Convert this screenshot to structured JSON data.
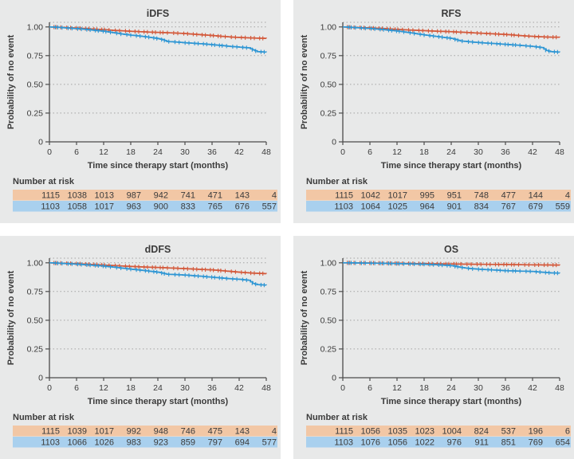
{
  "figure": {
    "layout": "2x2-grid",
    "background": "#ffffff",
    "panel_background": "#e8e9e9"
  },
  "colors": {
    "series_orange": "#d3593b",
    "series_blue": "#2e96d4",
    "risk_row_orange_bg": "#f2c7a5",
    "risk_row_blue_bg": "#a9d0ee",
    "axis": "#4c4c4c",
    "grid": "#a3a3a3",
    "text": "#3b3b3b"
  },
  "chart_data": [
    {
      "type": "line",
      "subtype": "kaplan-meier",
      "title": "iDFS",
      "xlabel": "Time since therapy start (months)",
      "ylabel": "Probability of no event",
      "xlim": [
        0,
        48
      ],
      "ylim": [
        0,
        1.04
      ],
      "grid": "dotted-horizontal",
      "legend_position": "none",
      "x_ticks": [
        0,
        6,
        12,
        18,
        24,
        30,
        36,
        42,
        48
      ],
      "y_ticks": [
        {
          "label": "0",
          "value": 0
        },
        {
          "label": "0.25",
          "value": 0.25
        },
        {
          "label": "0.50",
          "value": 0.5
        },
        {
          "label": "0.75",
          "value": 0.75
        },
        {
          "label": "1.00",
          "value": 1
        }
      ],
      "series": [
        {
          "id": "series-orange",
          "color": "#d3593b",
          "censoring": "dense",
          "points": [
            [
              0,
              1.0
            ],
            [
              2,
              0.997
            ],
            [
              4,
              0.993
            ],
            [
              6,
              0.99
            ],
            [
              8,
              0.985
            ],
            [
              10,
              0.98
            ],
            [
              12,
              0.976
            ],
            [
              14,
              0.97
            ],
            [
              16,
              0.966
            ],
            [
              18,
              0.962
            ],
            [
              20,
              0.958
            ],
            [
              22,
              0.955
            ],
            [
              24,
              0.952
            ],
            [
              26,
              0.949
            ],
            [
              28,
              0.946
            ],
            [
              30,
              0.942
            ],
            [
              32,
              0.936
            ],
            [
              34,
              0.93
            ],
            [
              36,
              0.925
            ],
            [
              38,
              0.918
            ],
            [
              40,
              0.912
            ],
            [
              42,
              0.908
            ],
            [
              44,
              0.905
            ],
            [
              46,
              0.902
            ],
            [
              48,
              0.9
            ]
          ]
        },
        {
          "id": "series-blue",
          "color": "#2e96d4",
          "censoring": "dense",
          "points": [
            [
              0,
              1.0
            ],
            [
              2,
              0.996
            ],
            [
              4,
              0.99
            ],
            [
              6,
              0.985
            ],
            [
              8,
              0.978
            ],
            [
              10,
              0.97
            ],
            [
              12,
              0.962
            ],
            [
              14,
              0.95
            ],
            [
              16,
              0.938
            ],
            [
              18,
              0.928
            ],
            [
              20,
              0.92
            ],
            [
              22,
              0.91
            ],
            [
              24,
              0.898
            ],
            [
              25,
              0.888
            ],
            [
              26,
              0.873
            ],
            [
              28,
              0.868
            ],
            [
              30,
              0.862
            ],
            [
              32,
              0.857
            ],
            [
              34,
              0.852
            ],
            [
              36,
              0.845
            ],
            [
              38,
              0.838
            ],
            [
              40,
              0.83
            ],
            [
              42,
              0.824
            ],
            [
              44,
              0.818
            ],
            [
              45,
              0.8
            ],
            [
              46,
              0.785
            ],
            [
              48,
              0.78
            ]
          ]
        }
      ],
      "risk_table": {
        "label": "Number at risk",
        "rows": [
          {
            "series": "series-orange",
            "bg": "#f2c7a5",
            "values": [
              1115,
              1038,
              1013,
              987,
              942,
              741,
              471,
              143,
              4
            ]
          },
          {
            "series": "series-blue",
            "bg": "#a9d0ee",
            "values": [
              1103,
              1058,
              1017,
              963,
              900,
              833,
              765,
              676,
              557
            ]
          }
        ]
      }
    },
    {
      "type": "line",
      "subtype": "kaplan-meier",
      "title": "RFS",
      "xlabel": "Time since therapy start (months)",
      "ylabel": "Probability of no event",
      "xlim": [
        0,
        48
      ],
      "ylim": [
        0,
        1.04
      ],
      "grid": "dotted-horizontal",
      "legend_position": "none",
      "x_ticks": [
        0,
        6,
        12,
        18,
        24,
        30,
        36,
        42,
        48
      ],
      "y_ticks": [
        {
          "label": "0",
          "value": 0
        },
        {
          "label": "0.25",
          "value": 0.25
        },
        {
          "label": "0.50",
          "value": 0.5
        },
        {
          "label": "0.75",
          "value": 0.75
        },
        {
          "label": "1.00",
          "value": 1
        }
      ],
      "series": [
        {
          "id": "series-orange",
          "color": "#d3593b",
          "censoring": "dense",
          "points": [
            [
              0,
              1.0
            ],
            [
              3,
              0.995
            ],
            [
              6,
              0.991
            ],
            [
              9,
              0.985
            ],
            [
              12,
              0.978
            ],
            [
              15,
              0.972
            ],
            [
              18,
              0.967
            ],
            [
              21,
              0.962
            ],
            [
              24,
              0.958
            ],
            [
              27,
              0.952
            ],
            [
              30,
              0.946
            ],
            [
              33,
              0.94
            ],
            [
              36,
              0.934
            ],
            [
              39,
              0.925
            ],
            [
              42,
              0.917
            ],
            [
              45,
              0.912
            ],
            [
              48,
              0.91
            ]
          ]
        },
        {
          "id": "series-blue",
          "color": "#2e96d4",
          "censoring": "dense",
          "points": [
            [
              0,
              1.0
            ],
            [
              3,
              0.993
            ],
            [
              6,
              0.986
            ],
            [
              9,
              0.976
            ],
            [
              12,
              0.964
            ],
            [
              15,
              0.948
            ],
            [
              18,
              0.93
            ],
            [
              21,
              0.915
            ],
            [
              24,
              0.9
            ],
            [
              26,
              0.878
            ],
            [
              28,
              0.87
            ],
            [
              30,
              0.864
            ],
            [
              33,
              0.856
            ],
            [
              36,
              0.848
            ],
            [
              39,
              0.84
            ],
            [
              42,
              0.83
            ],
            [
              44,
              0.82
            ],
            [
              45,
              0.795
            ],
            [
              46,
              0.785
            ],
            [
              48,
              0.78
            ]
          ]
        }
      ],
      "risk_table": {
        "label": "Number at risk",
        "rows": [
          {
            "series": "series-orange",
            "bg": "#f2c7a5",
            "values": [
              1115,
              1042,
              1017,
              995,
              951,
              748,
              477,
              144,
              4
            ]
          },
          {
            "series": "series-blue",
            "bg": "#a9d0ee",
            "values": [
              1103,
              1064,
              1025,
              964,
              901,
              834,
              767,
              679,
              559
            ]
          }
        ]
      }
    },
    {
      "type": "line",
      "subtype": "kaplan-meier",
      "title": "dDFS",
      "xlabel": "Time since therapy start (months)",
      "ylabel": "Probability of no event",
      "xlim": [
        0,
        48
      ],
      "ylim": [
        0,
        1.04
      ],
      "grid": "dotted-horizontal",
      "legend_position": "none",
      "x_ticks": [
        0,
        6,
        12,
        18,
        24,
        30,
        36,
        42,
        48
      ],
      "y_ticks": [
        {
          "label": "0",
          "value": 0
        },
        {
          "label": "0.25",
          "value": 0.25
        },
        {
          "label": "0.50",
          "value": 0.5
        },
        {
          "label": "0.75",
          "value": 0.75
        },
        {
          "label": "1.00",
          "value": 1
        }
      ],
      "series": [
        {
          "id": "series-orange",
          "color": "#d3593b",
          "censoring": "dense",
          "points": [
            [
              0,
              1.0
            ],
            [
              3,
              0.996
            ],
            [
              6,
              0.992
            ],
            [
              9,
              0.986
            ],
            [
              12,
              0.98
            ],
            [
              15,
              0.974
            ],
            [
              18,
              0.968
            ],
            [
              21,
              0.963
            ],
            [
              24,
              0.959
            ],
            [
              27,
              0.954
            ],
            [
              30,
              0.949
            ],
            [
              33,
              0.943
            ],
            [
              36,
              0.938
            ],
            [
              39,
              0.928
            ],
            [
              42,
              0.918
            ],
            [
              45,
              0.91
            ],
            [
              48,
              0.905
            ]
          ]
        },
        {
          "id": "series-blue",
          "color": "#2e96d4",
          "censoring": "dense",
          "points": [
            [
              0,
              1.0
            ],
            [
              3,
              0.994
            ],
            [
              6,
              0.988
            ],
            [
              9,
              0.98
            ],
            [
              12,
              0.971
            ],
            [
              15,
              0.958
            ],
            [
              18,
              0.944
            ],
            [
              21,
              0.932
            ],
            [
              24,
              0.918
            ],
            [
              26,
              0.9
            ],
            [
              28,
              0.897
            ],
            [
              30,
              0.893
            ],
            [
              33,
              0.884
            ],
            [
              36,
              0.874
            ],
            [
              39,
              0.864
            ],
            [
              42,
              0.856
            ],
            [
              44,
              0.848
            ],
            [
              45,
              0.82
            ],
            [
              46,
              0.81
            ],
            [
              48,
              0.805
            ]
          ]
        }
      ],
      "risk_table": {
        "label": "Number at risk",
        "rows": [
          {
            "series": "series-orange",
            "bg": "#f2c7a5",
            "values": [
              1115,
              1039,
              1017,
              992,
              948,
              746,
              475,
              143,
              4
            ]
          },
          {
            "series": "series-blue",
            "bg": "#a9d0ee",
            "values": [
              1103,
              1066,
              1026,
              983,
              923,
              859,
              797,
              694,
              577
            ]
          }
        ]
      }
    },
    {
      "type": "line",
      "subtype": "kaplan-meier",
      "title": "OS",
      "xlabel": "Time since therapy start (months)",
      "ylabel": "Probability of no event",
      "xlim": [
        0,
        48
      ],
      "ylim": [
        0,
        1.04
      ],
      "grid": "dotted-horizontal",
      "legend_position": "none",
      "x_ticks": [
        0,
        6,
        12,
        18,
        24,
        30,
        36,
        42,
        48
      ],
      "y_ticks": [
        {
          "label": "0",
          "value": 0
        },
        {
          "label": "0.25",
          "value": 0.25
        },
        {
          "label": "0.50",
          "value": 0.5
        },
        {
          "label": "0.75",
          "value": 0.75
        },
        {
          "label": "1.00",
          "value": 1
        }
      ],
      "series": [
        {
          "id": "series-orange",
          "color": "#d3593b",
          "censoring": "dense",
          "points": [
            [
              0,
              1.0
            ],
            [
              6,
              0.998
            ],
            [
              12,
              0.995
            ],
            [
              18,
              0.992
            ],
            [
              24,
              0.99
            ],
            [
              27,
              0.988
            ],
            [
              30,
              0.987
            ],
            [
              36,
              0.985
            ],
            [
              42,
              0.982
            ],
            [
              48,
              0.98
            ]
          ]
        },
        {
          "id": "series-blue",
          "color": "#2e96d4",
          "censoring": "dense",
          "points": [
            [
              0,
              1.0
            ],
            [
              6,
              0.997
            ],
            [
              12,
              0.993
            ],
            [
              18,
              0.987
            ],
            [
              21,
              0.982
            ],
            [
              24,
              0.975
            ],
            [
              26,
              0.96
            ],
            [
              28,
              0.95
            ],
            [
              30,
              0.944
            ],
            [
              33,
              0.938
            ],
            [
              36,
              0.931
            ],
            [
              39,
              0.928
            ],
            [
              42,
              0.924
            ],
            [
              44,
              0.918
            ],
            [
              46,
              0.912
            ],
            [
              48,
              0.91
            ]
          ]
        }
      ],
      "risk_table": {
        "label": "Number at risk",
        "rows": [
          {
            "series": "series-orange",
            "bg": "#f2c7a5",
            "values": [
              1115,
              1056,
              1035,
              1023,
              1004,
              824,
              537,
              196,
              6
            ]
          },
          {
            "series": "series-blue",
            "bg": "#a9d0ee",
            "values": [
              1103,
              1076,
              1056,
              1022,
              976,
              911,
              851,
              769,
              654
            ]
          }
        ]
      }
    }
  ]
}
